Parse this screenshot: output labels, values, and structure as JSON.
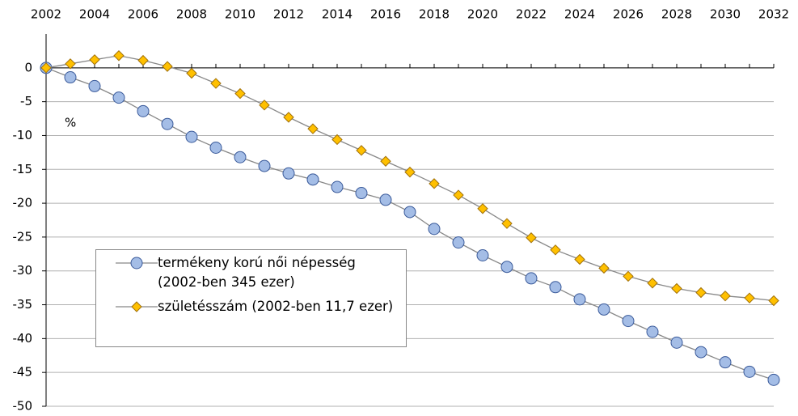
{
  "chart_data": {
    "type": "line",
    "annotation": "%",
    "x": [
      2002,
      2003,
      2004,
      2005,
      2006,
      2007,
      2008,
      2009,
      2010,
      2011,
      2012,
      2013,
      2014,
      2015,
      2016,
      2017,
      2018,
      2019,
      2020,
      2021,
      2022,
      2023,
      2024,
      2025,
      2026,
      2027,
      2028,
      2029,
      2030,
      2031,
      2032
    ],
    "xlim": [
      2002,
      2032
    ],
    "xticks": [
      2002,
      2004,
      2006,
      2008,
      2010,
      2012,
      2014,
      2016,
      2018,
      2020,
      2022,
      2024,
      2026,
      2028,
      2030,
      2032
    ],
    "ylim": [
      -50,
      5
    ],
    "yticks": [
      0,
      -5,
      -10,
      -15,
      -20,
      -25,
      -30,
      -35,
      -40,
      -45,
      -50
    ],
    "grid": true,
    "series": [
      {
        "name": "termékeny korú női népesség (2002-ben 345 ezer)",
        "color": "#a4bde6",
        "marker": "circle",
        "values": [
          0,
          -1.4,
          -2.7,
          -4.4,
          -6.4,
          -8.3,
          -10.2,
          -11.8,
          -13.2,
          -14.5,
          -15.6,
          -16.5,
          -17.6,
          -18.5,
          -19.5,
          -21.3,
          -23.8,
          -25.8,
          -27.7,
          -29.4,
          -31.1,
          -32.4,
          -34.2,
          -35.7,
          -37.4,
          -39.0,
          -40.6,
          -42.0,
          -43.5,
          -44.9,
          -46.1
        ]
      },
      {
        "name": "születésszám (2002-ben 11,7 ezer)",
        "color": "#ffc000",
        "marker": "diamond",
        "values": [
          0,
          0.6,
          1.2,
          1.8,
          1.1,
          0.2,
          -0.8,
          -2.3,
          -3.8,
          -5.5,
          -7.3,
          -9.0,
          -10.6,
          -12.2,
          -13.8,
          -15.4,
          -17.1,
          -18.8,
          -20.8,
          -23.0,
          -25.1,
          -26.9,
          -28.3,
          -29.6,
          -30.8,
          -31.8,
          -32.6,
          -33.2,
          -33.7,
          -34.0,
          -34.4
        ]
      }
    ]
  }
}
